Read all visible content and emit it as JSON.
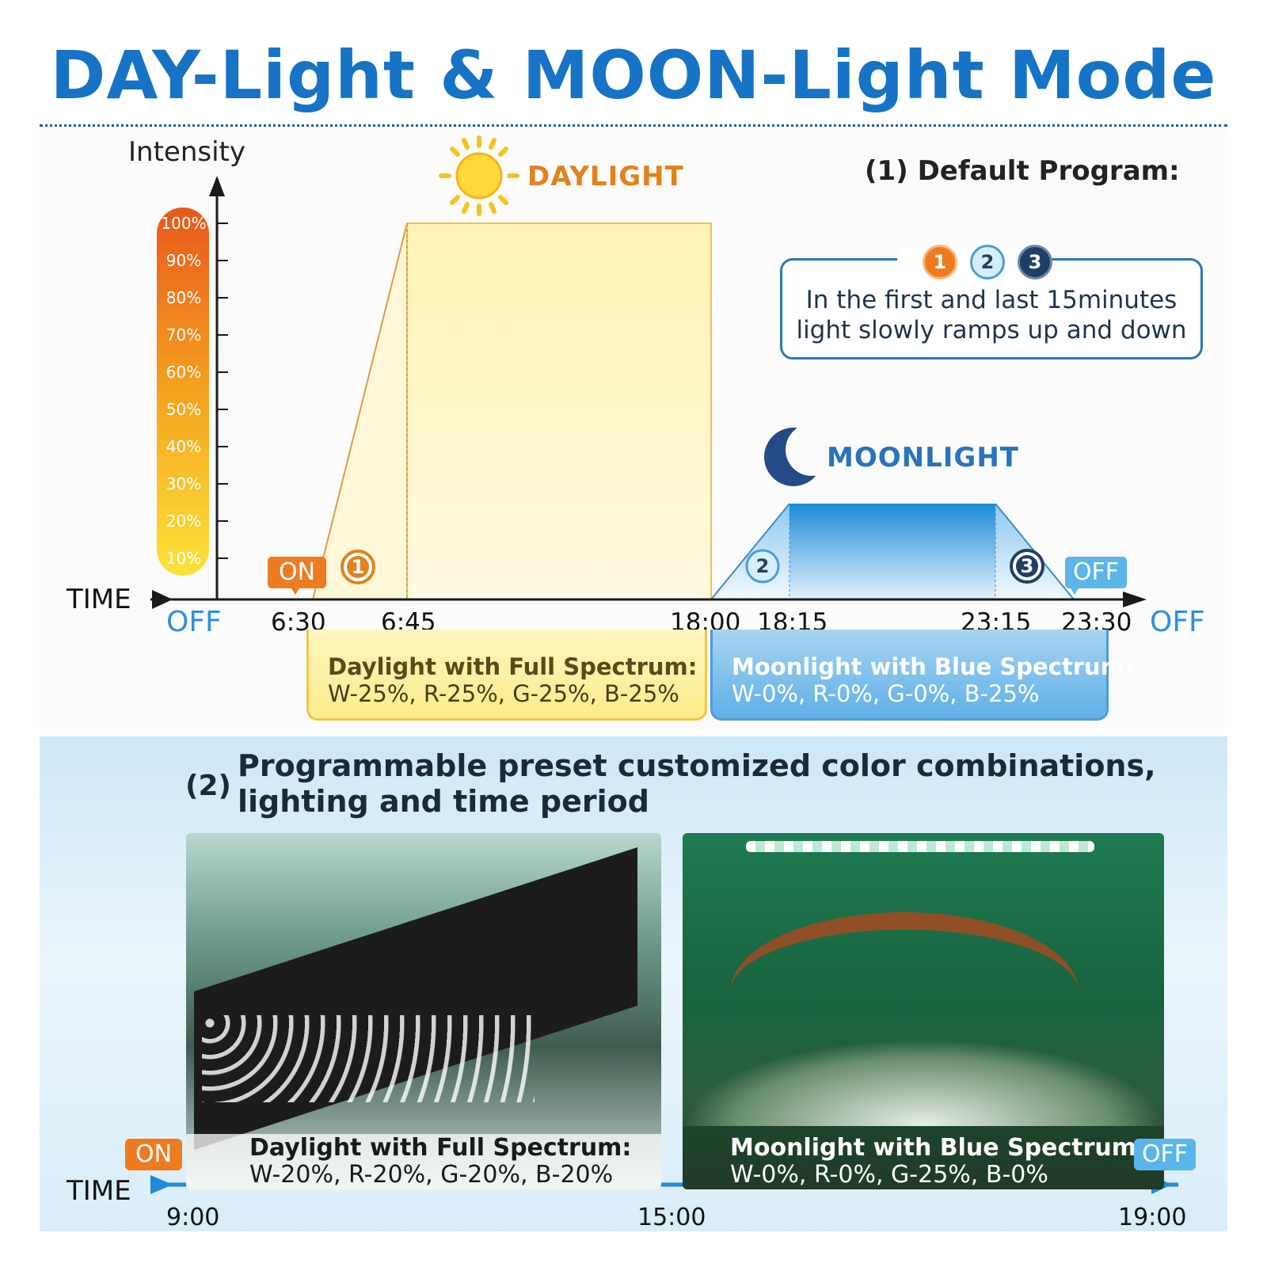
{
  "title": "DAY-Light & MOON-Light Mode",
  "chart": {
    "intensity_label": "Intensity",
    "time_label": "TIME",
    "percent_scale": [
      "100%",
      "90%",
      "80%",
      "70%",
      "60%",
      "50%",
      "40%",
      "30%",
      "20%",
      "10%"
    ],
    "off_left": "OFF",
    "off_right": "OFF",
    "on_tag": "ON",
    "off_tag": "OFF",
    "daylight_label": "DAYLIGHT",
    "moonlight_label": "MOONLIGHT",
    "times": [
      "6:30",
      "6:45",
      "18:00",
      "18:15",
      "23:15",
      "23:30"
    ],
    "step_badges": [
      "1",
      "2",
      "3"
    ]
  },
  "default_program": {
    "heading": "(1) Default Program:",
    "badges": [
      "1",
      "2",
      "3"
    ],
    "line1": "In the first and last 15minutes",
    "line2": "light slowly ramps up and down"
  },
  "daylight_info": {
    "title": "Daylight with Full Spectrum:",
    "values": "W-25%, R-25%, G-25%, B-25%"
  },
  "moonlight_info": {
    "title": "Moonlight with Blue Spectrum:",
    "values": "W-0%, R-0%, G-0%, B-25%"
  },
  "programmable": {
    "number": "(2)",
    "line1": "Programmable preset customized color combinations,",
    "line2": "lighting and time period"
  },
  "bottom_timeline": {
    "time_label": "TIME",
    "on_tag": "ON",
    "off_tag": "OFF",
    "ticks": [
      "9:00",
      "15:00",
      "19:00"
    ],
    "left_caption_title": "Daylight with Full Spectrum:",
    "left_caption_values": "W-20%, R-20%, G-20%, B-20%",
    "right_caption_title": "Moonlight with Blue Spectrum:",
    "right_caption_values": "W-0%, R-0%, G-25%, B-0%"
  },
  "colors": {
    "title_blue": "#1673c6",
    "day_orange": "#e0821d",
    "moon_blue": "#2a73bd",
    "off_blue": "#2e8ee0"
  }
}
